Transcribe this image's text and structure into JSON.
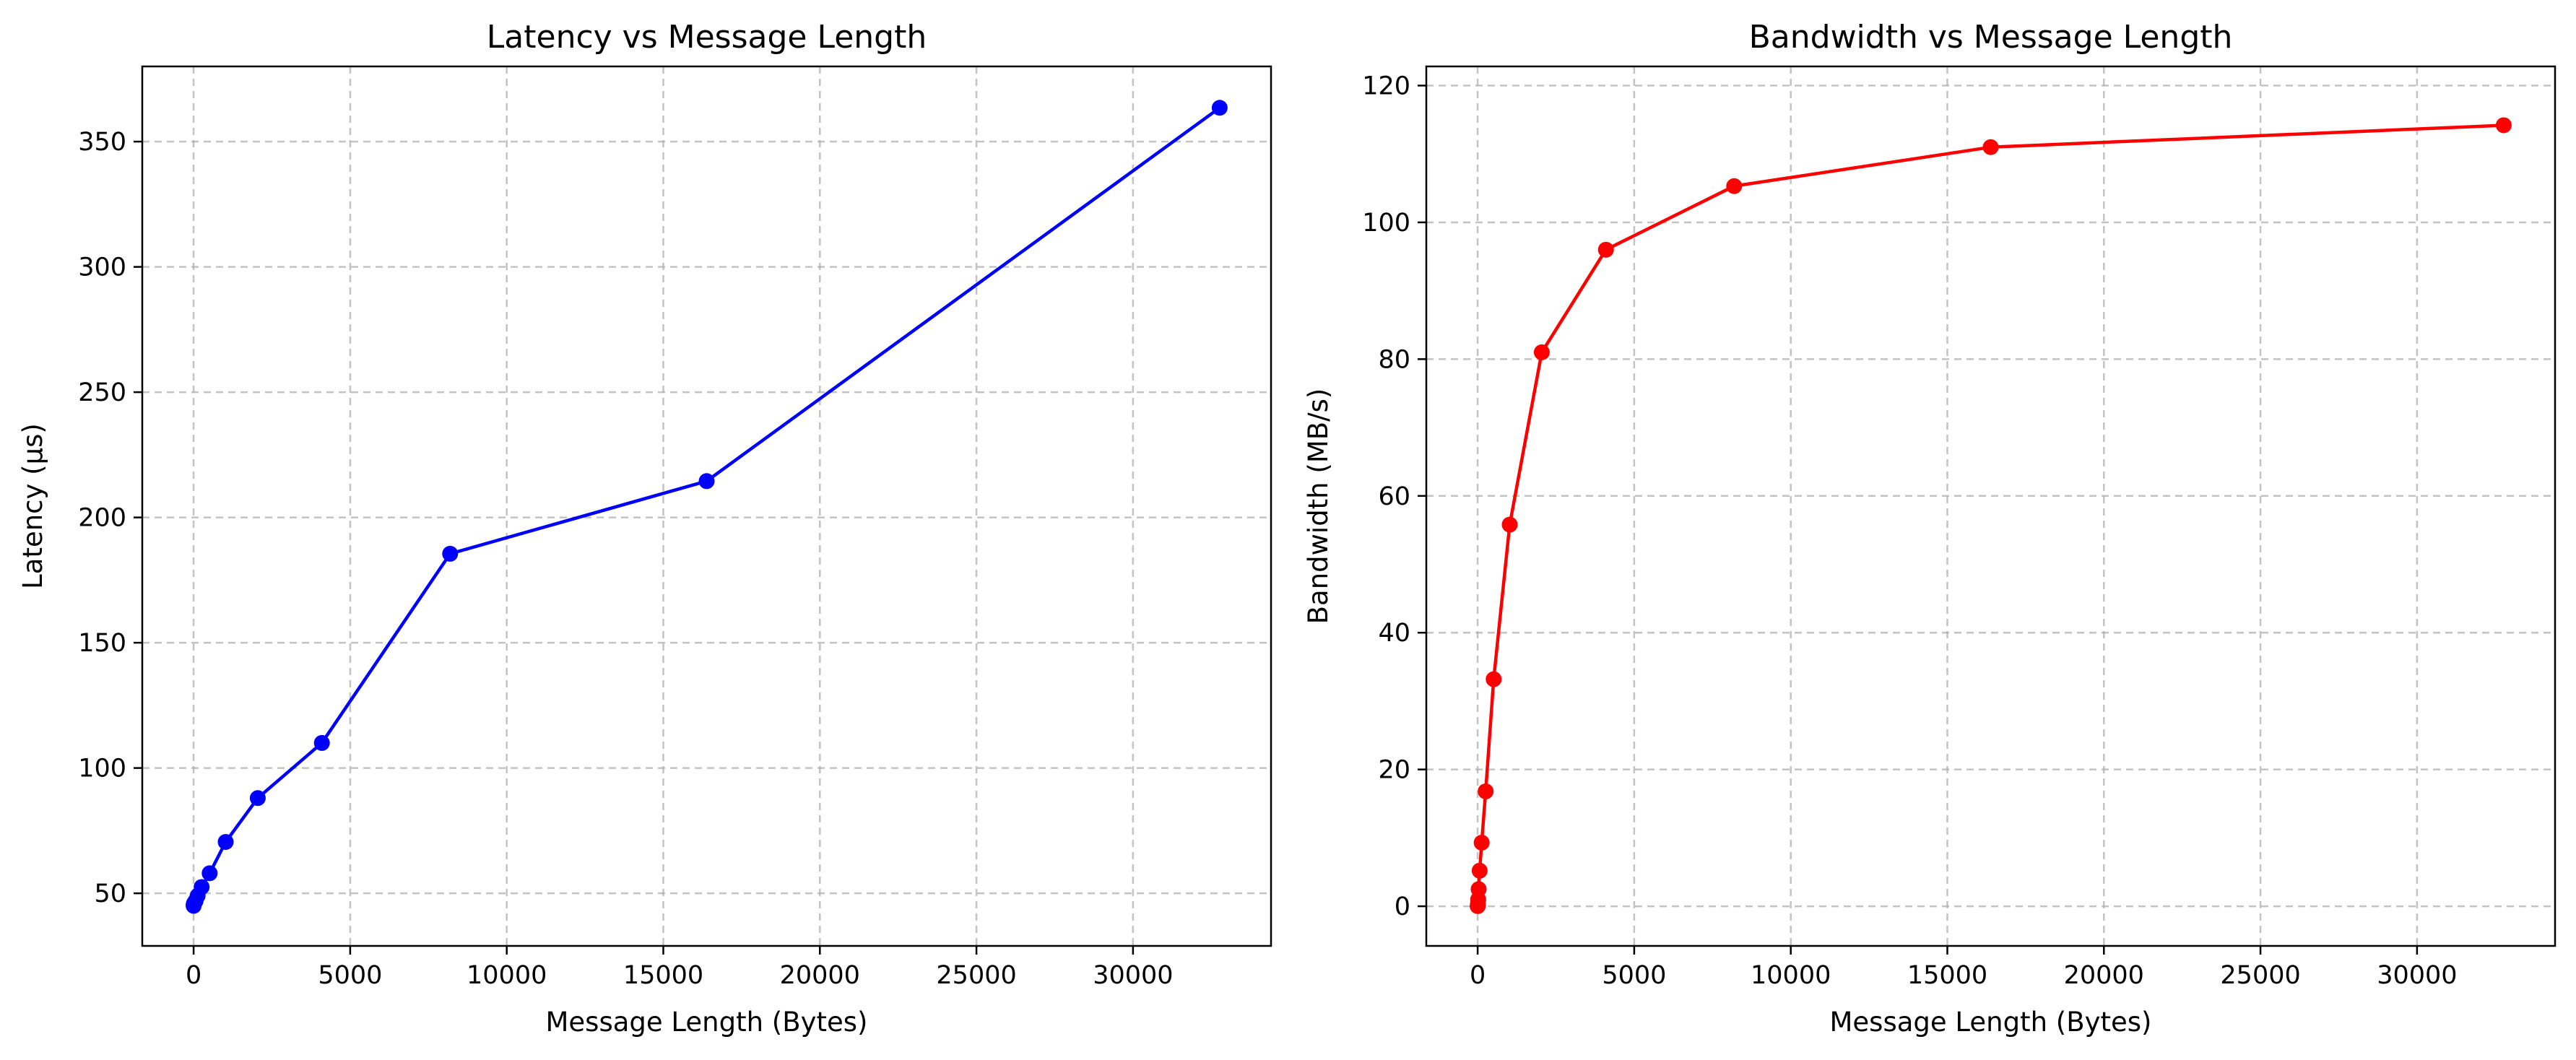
{
  "chart_data": [
    {
      "type": "line",
      "title": "Latency vs Message Length",
      "xlabel": "Message Length (Bytes)",
      "ylabel": "Latency (µs)",
      "xlim": [
        -1640,
        34408
      ],
      "ylim": [
        29,
        380
      ],
      "xticks": [
        0,
        5000,
        10000,
        15000,
        20000,
        25000,
        30000
      ],
      "yticks": [
        50,
        100,
        150,
        200,
        250,
        300,
        350
      ],
      "grid": true,
      "series": [
        {
          "color": "#0000ff",
          "marker": "circle",
          "x": [
            1,
            2,
            4,
            8,
            16,
            32,
            64,
            128,
            256,
            512,
            1024,
            2048,
            4096,
            8192,
            16384,
            32768
          ],
          "y": [
            45.0,
            45.5,
            45.5,
            45.8,
            46.0,
            46.3,
            47.0,
            49.0,
            52.5,
            58.0,
            70.5,
            88.0,
            110.0,
            185.5,
            214.5,
            363.5
          ]
        }
      ]
    },
    {
      "type": "line",
      "title": "Bandwidth vs Message Length",
      "xlabel": "Message Length (Bytes)",
      "ylabel": "Bandwidth (MB/s)",
      "xlim": [
        -1640,
        34408
      ],
      "ylim": [
        -5.8,
        122.8
      ],
      "xticks": [
        0,
        5000,
        10000,
        15000,
        20000,
        25000,
        30000
      ],
      "yticks": [
        0,
        20,
        40,
        60,
        80,
        100,
        120
      ],
      "grid": true,
      "series": [
        {
          "color": "#ff0000",
          "marker": "circle",
          "x": [
            1,
            2,
            4,
            8,
            16,
            32,
            64,
            128,
            256,
            512,
            1024,
            2048,
            4096,
            8192,
            16384,
            32768
          ],
          "y": [
            0.02,
            0.05,
            0.1,
            0.3,
            1.0,
            2.5,
            5.2,
            9.3,
            16.8,
            33.2,
            55.8,
            81.0,
            96.0,
            105.3,
            111.0,
            114.2
          ]
        }
      ]
    }
  ]
}
